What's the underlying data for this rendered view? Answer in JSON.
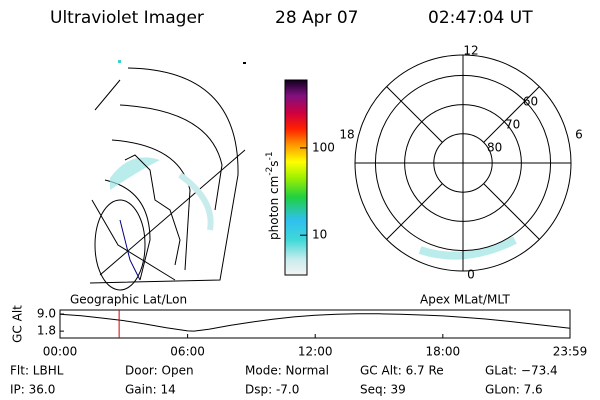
{
  "header": {
    "title": "Ultraviolet Imager",
    "date": "28 Apr 07",
    "time": "02:47:04 UT"
  },
  "panels": {
    "left": "Geographic Lat/Lon",
    "right": "Apex MLat/MLT"
  },
  "colorbar": {
    "label": [
      "photon cm",
      "-2",
      "s",
      "-1"
    ],
    "clim": [
      3.5,
      600
    ],
    "log": true,
    "ticks": [
      10,
      100
    ]
  },
  "polar": {
    "rlim": [
      90,
      53
    ],
    "rings": [
      80,
      70,
      60
    ],
    "mlt_labels": [
      12,
      18,
      6,
      0
    ]
  },
  "chart_data": {
    "type": "line",
    "ylabel": "GC Alt",
    "x": [
      0,
      1,
      2,
      3,
      4,
      5,
      6,
      6.3,
      7,
      8,
      9,
      10,
      11,
      12,
      13,
      14,
      15,
      16,
      17,
      18,
      19,
      20,
      21,
      22,
      23,
      23.98
    ],
    "values": [
      8.9,
      8.3,
      7.3,
      6.2,
      4.8,
      3.2,
      1.9,
      1.8,
      2.6,
      4.2,
      5.6,
      6.8,
      7.8,
      8.5,
      8.9,
      9.1,
      9.1,
      8.9,
      8.6,
      8.2,
      7.6,
      6.9,
      6.0,
      5.0,
      4.0,
      3.0
    ],
    "color": "#000000",
    "marker_x": 2.78,
    "marker_color": "#d00000",
    "xlim": [
      0,
      23.98
    ],
    "ylim": [
      -1.1,
      10.7
    ],
    "xticks": [
      {
        "value": 0,
        "label": "00:00"
      },
      {
        "value": 6,
        "label": "06:00"
      },
      {
        "value": 12,
        "label": "12:00"
      },
      {
        "value": 18,
        "label": "18:00"
      },
      {
        "value": 23.98,
        "label": "23:59"
      }
    ],
    "yticks": [
      {
        "value": 9,
        "label": "9.0"
      },
      {
        "value": 1.8,
        "label": "1.8"
      }
    ]
  },
  "footer": [
    [
      "Flt: LBHL",
      "Door: Open",
      "Mode: Normal",
      "GC Alt: 6.7 Re",
      "GLat: −73.4"
    ],
    [
      "IP: 36.0",
      "Gain: 14",
      "Dsp:   -7.0",
      "Seq: 39",
      "GLon:  7.6"
    ]
  ]
}
